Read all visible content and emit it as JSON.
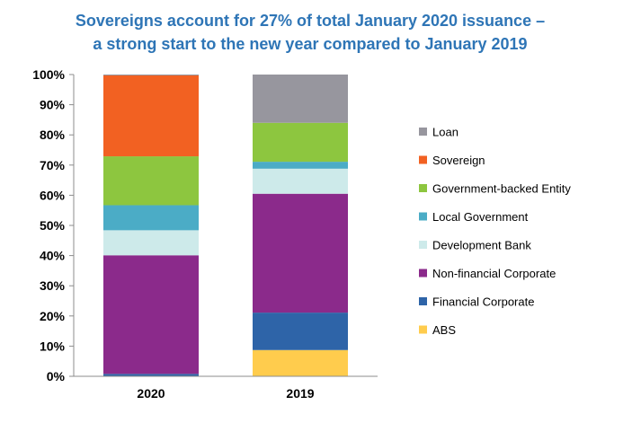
{
  "chart_data": {
    "type": "bar",
    "stacked": true,
    "percent": true,
    "title": [
      "Sovereigns account for 27% of total January 2020 issuance –",
      "a strong start to the new year compared to January 2019"
    ],
    "xlabel": "",
    "ylabel": "",
    "ylim": [
      0,
      100
    ],
    "y_ticks": [
      0,
      10,
      20,
      30,
      40,
      50,
      60,
      70,
      80,
      90,
      100
    ],
    "y_tick_labels": [
      "0%",
      "10%",
      "20%",
      "30%",
      "40%",
      "50%",
      "60%",
      "70%",
      "80%",
      "90%",
      "100%"
    ],
    "categories": [
      "2020",
      "2019"
    ],
    "grid": false,
    "legend_position": "right",
    "series": [
      {
        "name": "ABS",
        "color": "#ffcc4d",
        "values": [
          0,
          8.7
        ]
      },
      {
        "name": "Financial Corporate",
        "color": "#2e64a8",
        "values": [
          0.8,
          12.4
        ]
      },
      {
        "name": "Non-financial Corporate",
        "color": "#8b2a8b",
        "values": [
          39.3,
          39.4
        ]
      },
      {
        "name": "Development Bank",
        "color": "#cdeaea",
        "values": [
          8.3,
          8.3
        ]
      },
      {
        "name": "Local Government",
        "color": "#4bacc6",
        "values": [
          8.3,
          2.3
        ]
      },
      {
        "name": "Government-backed Entity",
        "color": "#8dc63f",
        "values": [
          16.2,
          12.9
        ]
      },
      {
        "name": "Sovereign",
        "color": "#f26122",
        "values": [
          26.8,
          0
        ]
      },
      {
        "name": "Loan",
        "color": "#97969e",
        "values": [
          0.3,
          16.0
        ]
      }
    ]
  }
}
